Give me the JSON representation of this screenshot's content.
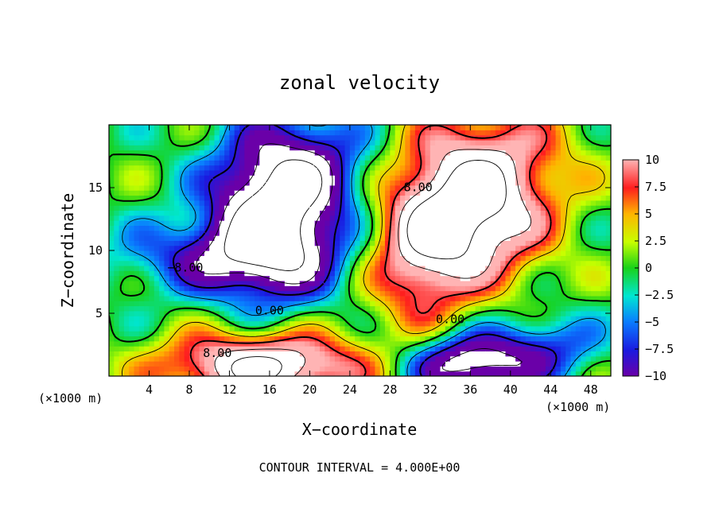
{
  "chart_data": {
    "type": "heatmap",
    "title": "zonal velocity",
    "xlabel": "X−coordinate",
    "ylabel": "Z−coordinate",
    "x_unit_left": "(×1000 m)",
    "x_unit_right": "(×1000 m)",
    "footer": "CONTOUR INTERVAL = 4.000E+00",
    "xlim": [
      0,
      50
    ],
    "ylim": [
      0,
      20
    ],
    "x_ticks": [
      4,
      8,
      12,
      16,
      20,
      24,
      28,
      32,
      36,
      40,
      44,
      48
    ],
    "y_ticks": [
      5,
      10,
      15
    ],
    "colorbar": {
      "min": -10,
      "max": 10,
      "tick_values": [
        10,
        7.5,
        5,
        2.5,
        0,
        -2.5,
        -5,
        -7.5,
        -10
      ],
      "tick_labels": [
        "10",
        "7.5",
        "5",
        "2.5",
        "0",
        "−2.5",
        "−5",
        "−7.5",
        "−10"
      ]
    },
    "contour_interval": 4,
    "contour_labels": [
      {
        "text": "8.00",
        "x": 30.8,
        "z": 15.0
      },
      {
        "text": "−8.00",
        "x": 7.6,
        "z": 8.6
      },
      {
        "text": "0.00",
        "x": 16.0,
        "z": 5.2
      },
      {
        "text": "0.00",
        "x": 34.0,
        "z": 4.5
      },
      {
        "text": "8.00",
        "x": 10.8,
        "z": 1.8
      }
    ],
    "features": [
      {
        "kind": "max",
        "x": 36,
        "z": 13.2,
        "peak": 16
      },
      {
        "kind": "min",
        "x": 16,
        "z": 12.5,
        "peak": -16
      },
      {
        "kind": "max",
        "x": 16,
        "z": 0.8,
        "peak": 16
      },
      {
        "kind": "min",
        "x": 36,
        "z": 1.0,
        "peak": -14
      }
    ]
  }
}
